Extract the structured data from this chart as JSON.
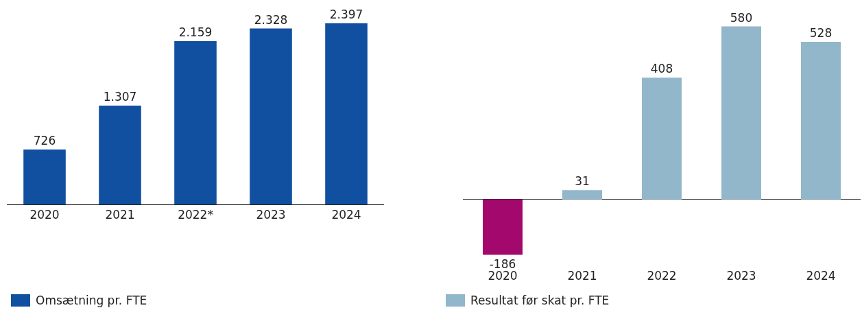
{
  "chart_data": [
    {
      "type": "bar",
      "categories": [
        "2020",
        "2021",
        "2022*",
        "2023",
        "2024"
      ],
      "legend": "bottom left",
      "series": [
        {
          "name": "Omsætning pr. FTE",
          "color": "#1150a0",
          "values": [
            726,
            1307,
            2159,
            2328,
            2397
          ],
          "value_labels": [
            "726",
            "1.307",
            "2.159",
            "2.328",
            "2.397"
          ]
        }
      ]
    },
    {
      "type": "bar",
      "categories": [
        "2020",
        "2021",
        "2022",
        "2023",
        "2024"
      ],
      "legend": "bottom left",
      "series": [
        {
          "name": "Resultat før skat pr. FTE",
          "color": "#92b6ca",
          "colors": [
            "#a3086c",
            "#92b6ca",
            "#92b6ca",
            "#92b6ca",
            "#92b6ca"
          ],
          "values": [
            -186,
            31,
            408,
            580,
            528
          ],
          "value_labels": [
            "-186",
            "31",
            "408",
            "580",
            "528"
          ]
        }
      ]
    }
  ]
}
